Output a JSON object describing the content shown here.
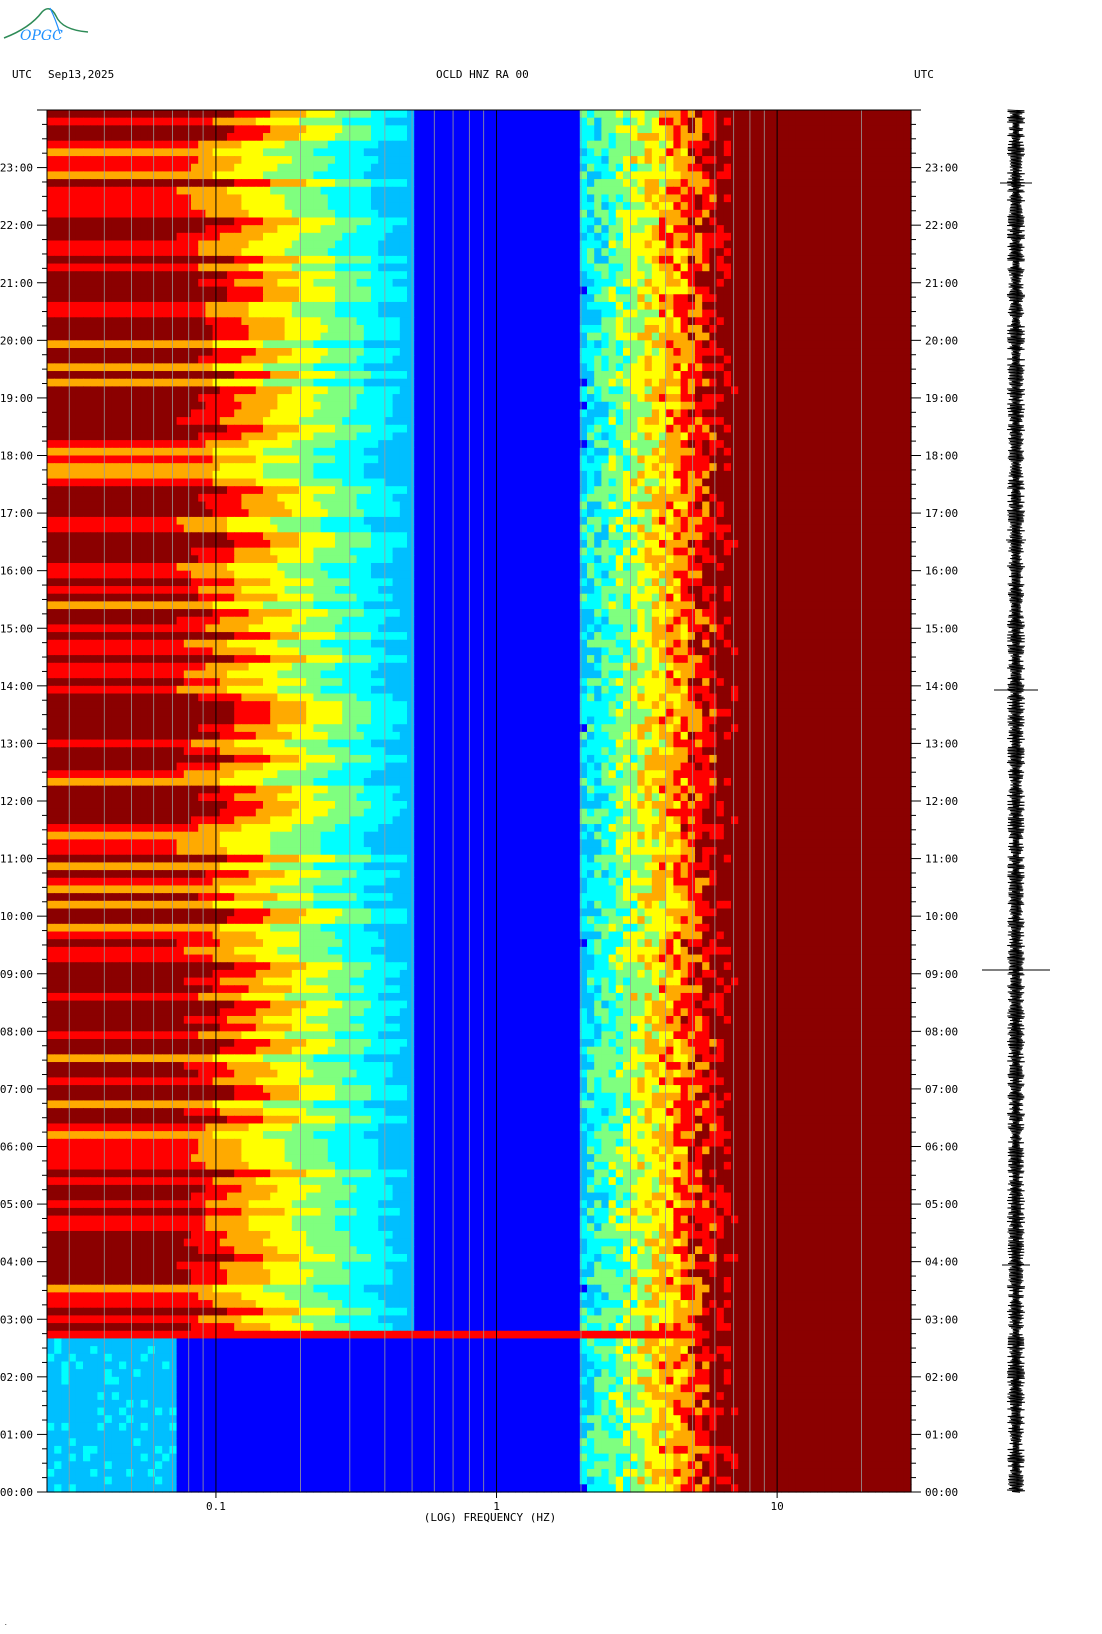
{
  "header": {
    "left_timezone": "UTC",
    "date": "Sep13,2025",
    "station": "OCLD HNZ RA 00",
    "right_timezone": "UTC"
  },
  "logo": {
    "text": "OPGC"
  },
  "chart_data": {
    "type": "heatmap",
    "title": "OCLD HNZ RA 00",
    "xlabel": "(LOG) FREQUENCY (HZ)",
    "xscale": "log",
    "xlim": [
      0.025,
      30
    ],
    "x_ticks": [
      {
        "value": 0.1,
        "label": "0.1"
      },
      {
        "value": 1,
        "label": "1"
      },
      {
        "value": 10,
        "label": "10"
      }
    ],
    "ylabel": "UTC",
    "ylim_hours": [
      0,
      24
    ],
    "y_ticks": [
      "00:00",
      "01:00",
      "02:00",
      "03:00",
      "04:00",
      "05:00",
      "06:00",
      "07:00",
      "08:00",
      "09:00",
      "10:00",
      "11:00",
      "12:00",
      "13:00",
      "14:00",
      "15:00",
      "16:00",
      "17:00",
      "18:00",
      "19:00",
      "20:00",
      "21:00",
      "22:00",
      "23:00"
    ],
    "colormap": [
      "#00008b",
      "#0000ff",
      "#00bfff",
      "#00ffff",
      "#7fff7f",
      "#ffff00",
      "#ffaa00",
      "#ff0000",
      "#8b0000"
    ],
    "grid": true,
    "seismogram_trace": "right side",
    "events": [
      {
        "time": "02:47",
        "description": "broadband event"
      }
    ]
  }
}
